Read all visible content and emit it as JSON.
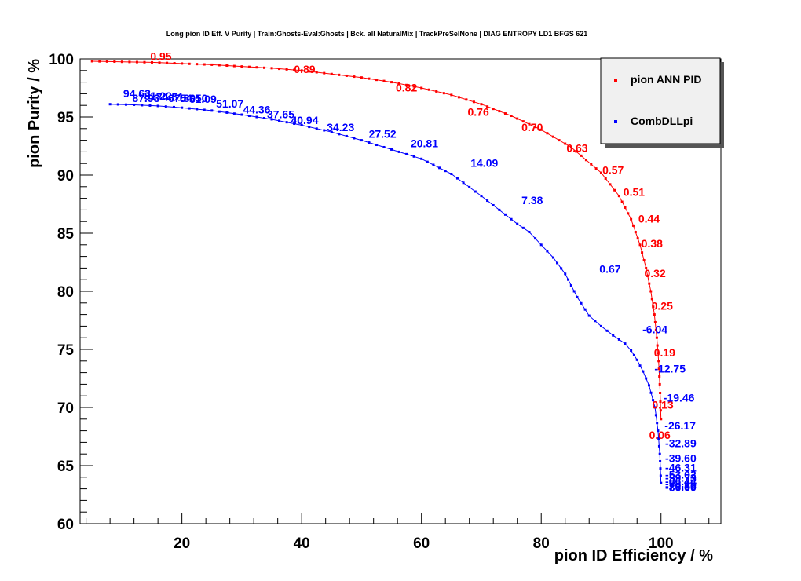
{
  "chart_data": {
    "type": "line",
    "title": "Long pion ID Eff. V Purity | Train:Ghosts-Eval:Ghosts | Bck. all NaturalMix | TrackPreSelNone | DIAG ENTROPY LD1 BFGS 621",
    "xlabel": "pion ID Efficiency / %",
    "ylabel": "pion Purity / %",
    "xlim": [
      3,
      110
    ],
    "ylim": [
      60,
      100
    ],
    "xticks": [
      20,
      40,
      60,
      80,
      100
    ],
    "yticks": [
      60,
      65,
      70,
      75,
      80,
      85,
      90,
      95,
      100
    ],
    "grid": false,
    "legend_position": "top-right",
    "series": [
      {
        "name": "pion ANN PID",
        "color": "#ff0000",
        "points": [
          [
            5,
            99.8
          ],
          [
            10,
            99.75
          ],
          [
            15,
            99.7
          ],
          [
            20,
            99.6
          ],
          [
            25,
            99.5
          ],
          [
            30,
            99.35
          ],
          [
            35,
            99.2
          ],
          [
            40,
            99.0
          ],
          [
            45,
            98.7
          ],
          [
            50,
            98.4
          ],
          [
            55,
            98.0
          ],
          [
            60,
            97.5
          ],
          [
            65,
            96.9
          ],
          [
            70,
            96.1
          ],
          [
            75,
            95.1
          ],
          [
            80,
            93.9
          ],
          [
            85,
            92.4
          ],
          [
            90,
            90.2
          ],
          [
            93,
            88.2
          ],
          [
            95,
            86.2
          ],
          [
            96.5,
            84.0
          ],
          [
            97.5,
            82.0
          ],
          [
            98.3,
            80.0
          ],
          [
            98.9,
            78.0
          ],
          [
            99.3,
            76.0
          ],
          [
            99.6,
            74.0
          ],
          [
            99.8,
            72.0
          ],
          [
            99.9,
            70.5
          ],
          [
            100,
            69.0
          ]
        ],
        "labels": [
          {
            "text": "0.95",
            "x": 16.5,
            "y": 99.9
          },
          {
            "text": "0.89",
            "x": 40.5,
            "y": 98.8
          },
          {
            "text": "0.82",
            "x": 57.5,
            "y": 97.2
          },
          {
            "text": "0.76",
            "x": 69.5,
            "y": 95.1
          },
          {
            "text": "0.70",
            "x": 78.5,
            "y": 93.8
          },
          {
            "text": "0.63",
            "x": 86,
            "y": 92.0
          },
          {
            "text": "0.57",
            "x": 92,
            "y": 90.1
          },
          {
            "text": "0.51",
            "x": 95.5,
            "y": 88.2
          },
          {
            "text": "0.44",
            "x": 98,
            "y": 85.9
          },
          {
            "text": "0.38",
            "x": 98.5,
            "y": 83.8
          },
          {
            "text": "0.32",
            "x": 99,
            "y": 81.2
          },
          {
            "text": "0.25",
            "x": 100.2,
            "y": 78.4
          },
          {
            "text": "0.19",
            "x": 100.6,
            "y": 74.4
          },
          {
            "text": "0.13",
            "x": 100.3,
            "y": 69.9
          },
          {
            "text": "0.06",
            "x": 99.8,
            "y": 67.3
          }
        ]
      },
      {
        "name": "CombDLLpi",
        "color": "#0000ff",
        "points": [
          [
            8,
            96.1
          ],
          [
            12,
            96.05
          ],
          [
            16,
            95.95
          ],
          [
            20,
            95.8
          ],
          [
            25,
            95.55
          ],
          [
            30,
            95.2
          ],
          [
            35,
            94.8
          ],
          [
            40,
            94.3
          ],
          [
            45,
            93.7
          ],
          [
            50,
            93.0
          ],
          [
            55,
            92.2
          ],
          [
            60,
            91.4
          ],
          [
            65,
            90.1
          ],
          [
            70,
            88.2
          ],
          [
            73,
            87.0
          ],
          [
            76,
            85.8
          ],
          [
            78,
            85.1
          ],
          [
            80,
            84.0
          ],
          [
            82,
            82.9
          ],
          [
            84,
            81.5
          ],
          [
            86,
            79.5
          ],
          [
            88,
            77.9
          ],
          [
            90,
            77.0
          ],
          [
            92,
            76.2
          ],
          [
            94,
            75.5
          ],
          [
            95,
            74.9
          ],
          [
            96,
            74.1
          ],
          [
            97,
            73.1
          ],
          [
            98,
            71.9
          ],
          [
            99,
            70.0
          ],
          [
            99.5,
            68.0
          ],
          [
            99.8,
            66.0
          ],
          [
            100,
            63.5
          ]
        ],
        "labels": [
          {
            "text": "94.63",
            "x": 12.5,
            "y": 96.7
          },
          {
            "text": "87.93",
            "x": 14,
            "y": 96.3
          },
          {
            "text": "81.22",
            "x": 16,
            "y": 96.5
          },
          {
            "text": "74.51",
            "x": 18,
            "y": 96.4
          },
          {
            "text": "67.80",
            "x": 20,
            "y": 96.3
          },
          {
            "text": "61.09",
            "x": 23.5,
            "y": 96.2
          },
          {
            "text": "54.50",
            "x": 22,
            "y": 96.3
          },
          {
            "text": "51.07",
            "x": 28,
            "y": 95.8
          },
          {
            "text": "44.36",
            "x": 32.5,
            "y": 95.3
          },
          {
            "text": "37.65",
            "x": 36.5,
            "y": 94.9
          },
          {
            "text": "40.94",
            "x": 40.5,
            "y": 94.4
          },
          {
            "text": "34.23",
            "x": 46.5,
            "y": 93.8
          },
          {
            "text": "27.52",
            "x": 53.5,
            "y": 93.2
          },
          {
            "text": "20.81",
            "x": 60.5,
            "y": 92.4
          },
          {
            "text": "14.09",
            "x": 70.5,
            "y": 90.7
          },
          {
            "text": "7.38",
            "x": 78.5,
            "y": 87.5
          },
          {
            "text": "0.67",
            "x": 91.5,
            "y": 81.6
          },
          {
            "text": "-6.04",
            "x": 99,
            "y": 76.4
          },
          {
            "text": "-12.75",
            "x": 101.5,
            "y": 73.0
          },
          {
            "text": "-19.46",
            "x": 103,
            "y": 70.5
          },
          {
            "text": "-26.17",
            "x": 103.2,
            "y": 68.1
          },
          {
            "text": "-32.89",
            "x": 103.3,
            "y": 66.6
          },
          {
            "text": "-39.60",
            "x": 103.3,
            "y": 65.3
          },
          {
            "text": "-46.31",
            "x": 103.3,
            "y": 64.5
          },
          {
            "text": "-53.02",
            "x": 103.3,
            "y": 63.9
          },
          {
            "text": "-59.73",
            "x": 103.3,
            "y": 63.6
          },
          {
            "text": "-66.44",
            "x": 103.3,
            "y": 63.3
          },
          {
            "text": "-73.15",
            "x": 103.3,
            "y": 63.1
          },
          {
            "text": "-79.86",
            "x": 103.3,
            "y": 62.9
          },
          {
            "text": "-86.00",
            "x": 103.3,
            "y": 62.8
          }
        ]
      }
    ]
  }
}
